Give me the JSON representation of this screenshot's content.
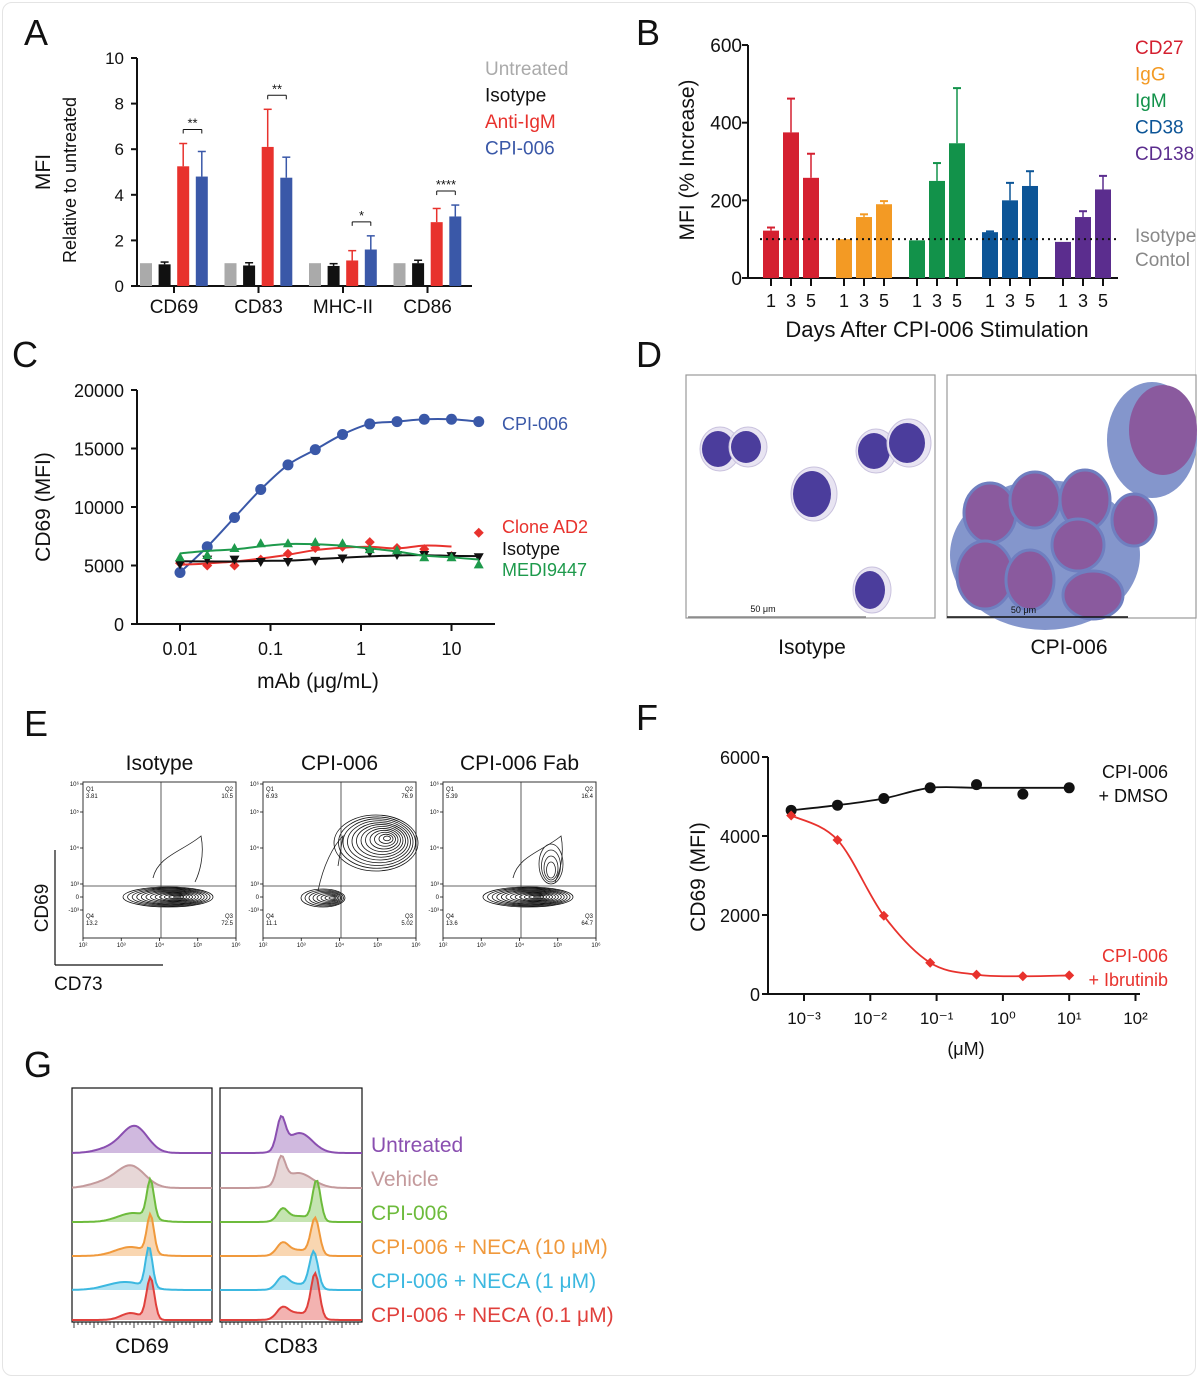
{
  "panel_letters": [
    "A",
    "B",
    "C",
    "D",
    "E",
    "F",
    "G"
  ],
  "panel_D": {
    "images": [
      {
        "label": "Isotype",
        "scale_bar": "50 μm"
      },
      {
        "label": "CPI-006",
        "scale_bar": "50 μm"
      }
    ],
    "colors": {
      "nucleus": "#4b3d9c",
      "cytoplasm": "#8496cc",
      "activated_nucleus": "#8a5a9e"
    }
  },
  "chart_data": [
    {
      "panel": "A",
      "type": "bar",
      "ylabel": "MFI",
      "ylabel2": "Relative to untreated",
      "ylim": [
        0,
        10
      ],
      "yticks": [
        "0",
        "2",
        "4",
        "6",
        "8",
        "10"
      ],
      "categories": [
        "CD69",
        "CD83",
        "MHC-II",
        "CD86"
      ],
      "legend_placement": "top-right",
      "series": [
        {
          "name": "Untreated",
          "color": "#aaaaaa",
          "values": [
            1,
            1,
            1,
            1
          ],
          "errors": [
            0,
            0,
            0,
            0
          ]
        },
        {
          "name": "Isotype",
          "color": "#111111",
          "values": [
            0.95,
            0.9,
            0.88,
            1.0
          ],
          "errors": [
            0.1,
            0.12,
            0.1,
            0.13
          ]
        },
        {
          "name": "Anti-IgM",
          "color": "#e8322d",
          "values": [
            5.25,
            6.1,
            1.12,
            2.8
          ],
          "errors": [
            1.0,
            1.65,
            0.43,
            0.6
          ]
        },
        {
          "name": "CPI-006",
          "color": "#3a58a8",
          "values": [
            4.8,
            4.75,
            1.6,
            3.05
          ],
          "errors": [
            1.1,
            0.9,
            0.6,
            0.5
          ]
        }
      ],
      "significance": [
        {
          "category": "CD69",
          "label": "**"
        },
        {
          "category": "CD83",
          "label": "**"
        },
        {
          "category": "MHC-II",
          "label": "*"
        },
        {
          "category": "CD86",
          "label": "****"
        }
      ]
    },
    {
      "panel": "B",
      "type": "bar",
      "ylabel": "MFI (% Increase)",
      "xlabel": "Days After CPI-006 Stimulation",
      "ylim": [
        0,
        600
      ],
      "yticks": [
        "0",
        "200",
        "400",
        "600"
      ],
      "days": [
        "1",
        "3",
        "5"
      ],
      "legend_placement": "right",
      "groups": [
        {
          "name": "CD27",
          "color": "#d42030",
          "values": [
            122,
            375,
            258
          ],
          "errors": [
            8,
            87,
            62
          ]
        },
        {
          "name": "IgG",
          "color": "#f39a24",
          "values": [
            100,
            157,
            190
          ],
          "errors": [
            0,
            7,
            8
          ]
        },
        {
          "name": "IgM",
          "color": "#12924a",
          "values": [
            97,
            250,
            347
          ],
          "errors": [
            0,
            46,
            142
          ]
        },
        {
          "name": "CD38",
          "color": "#0c5597",
          "values": [
            118,
            200,
            237
          ],
          "errors": [
            2,
            45,
            38
          ]
        },
        {
          "name": "CD138",
          "color": "#5b2d8e",
          "values": [
            93,
            157,
            228
          ],
          "errors": [
            0,
            15,
            35
          ]
        }
      ],
      "reference_line": {
        "value": 100,
        "label1": "Isotype",
        "label2": "Contol",
        "color": "#888888"
      }
    },
    {
      "panel": "C",
      "type": "line",
      "xscale": "log",
      "ylabel": "CD69 (MFI)",
      "xlabel": "mAb (μg/mL)",
      "ylim": [
        0,
        20000
      ],
      "yticks": [
        "0",
        "5000",
        "10000",
        "15000",
        "20000"
      ],
      "xticks": [
        "0.01",
        "0.1",
        "1",
        "10"
      ],
      "x": [
        0.01,
        0.02,
        0.04,
        0.078,
        0.156,
        0.3125,
        0.625,
        1.25,
        2.5,
        5,
        10,
        20
      ],
      "series": [
        {
          "name": "CPI-006",
          "color": "#3a58a8",
          "marker": "circle",
          "values": [
            4400,
            6600,
            9100,
            11500,
            13600,
            14900,
            16200,
            17100,
            17300,
            17500,
            17500,
            17300
          ]
        },
        {
          "name": "Clone AD2",
          "color": "#e8322d",
          "marker": "diamond",
          "values": [
            5200,
            5000,
            5000,
            5500,
            6000,
            6500,
            6600,
            7000,
            6500,
            6400,
            5800,
            7800
          ]
        },
        {
          "name": "Isotype",
          "color": "#111111",
          "marker": "triangle-down",
          "values": [
            5100,
            5500,
            5500,
            5300,
            5300,
            5400,
            5600,
            6100,
            5900,
            5900,
            5800,
            5700
          ]
        },
        {
          "name": "MEDI9447",
          "color": "#1e9a4c",
          "marker": "triangle-up",
          "values": [
            5700,
            5900,
            6500,
            6900,
            6900,
            7000,
            6900,
            6400,
            6300,
            5700,
            5700,
            5100
          ]
        }
      ]
    },
    {
      "panel": "E",
      "type": "scatter",
      "plot_style": "contour",
      "xlabel": "CD73",
      "ylabel": "CD69",
      "xtick_labels": [
        "10²",
        "10³",
        "10⁴",
        "10⁵",
        "10⁶"
      ],
      "ytick_labels": [
        "10⁶",
        "10⁵",
        "10⁴",
        "10³",
        "0",
        "-10³"
      ],
      "plots": [
        {
          "title": "Isotype",
          "Q1": "3.81",
          "Q2": "10.5",
          "Q3": "72.5",
          "Q4": "13.2"
        },
        {
          "title": "CPI-006",
          "Q1": "6.93",
          "Q2": "76.9",
          "Q3": "5.02",
          "Q4": "11.1"
        },
        {
          "title": "CPI-006 Fab",
          "Q1": "5.39",
          "Q2": "16.4",
          "Q3": "64.7",
          "Q4": "13.6"
        }
      ],
      "quadrant_names": [
        "Q1",
        "Q2",
        "Q3",
        "Q4"
      ]
    },
    {
      "panel": "F",
      "type": "line",
      "xscale": "log",
      "ylabel": "CD69 (MFI)",
      "xlabel": "(μM)",
      "ylim": [
        0,
        6000
      ],
      "yticks": [
        "0",
        "2000",
        "4000",
        "6000"
      ],
      "xticks": [
        "10⁻³",
        "10⁻²",
        "10⁻¹",
        "10⁰",
        "10¹",
        "10²"
      ],
      "x": [
        0.00064,
        0.0032,
        0.016,
        0.08,
        0.4,
        2,
        10
      ],
      "series": [
        {
          "name": "CPI-006",
          "name2": "+ DMSO",
          "color": "#111111",
          "marker": "circle",
          "values": [
            4650,
            4780,
            4950,
            5220,
            5300,
            5060,
            5220
          ]
        },
        {
          "name": "CPI-006",
          "name2": "+ Ibrutinib",
          "color": "#e8322d",
          "marker": "diamond",
          "values": [
            4520,
            3900,
            1980,
            790,
            490,
            450,
            470
          ]
        }
      ]
    },
    {
      "panel": "G",
      "type": "area",
      "plot_style": "histogram overlay",
      "markers": [
        "CD69",
        "CD83"
      ],
      "conditions": [
        {
          "name": "Untreated",
          "color": "#8a4fb0"
        },
        {
          "name": "Vehicle",
          "color": "#c49a9c"
        },
        {
          "name": "CPI-006",
          "color": "#6dbb3c"
        },
        {
          "name": "CPI-006 + NECA (10 μM)",
          "color": "#f0993c"
        },
        {
          "name": "CPI-006 + NECA (1 μM)",
          "color": "#3cb8e0"
        },
        {
          "name": "CPI-006 + NECA (0.1 μM)",
          "color": "#e0403c"
        }
      ]
    }
  ]
}
